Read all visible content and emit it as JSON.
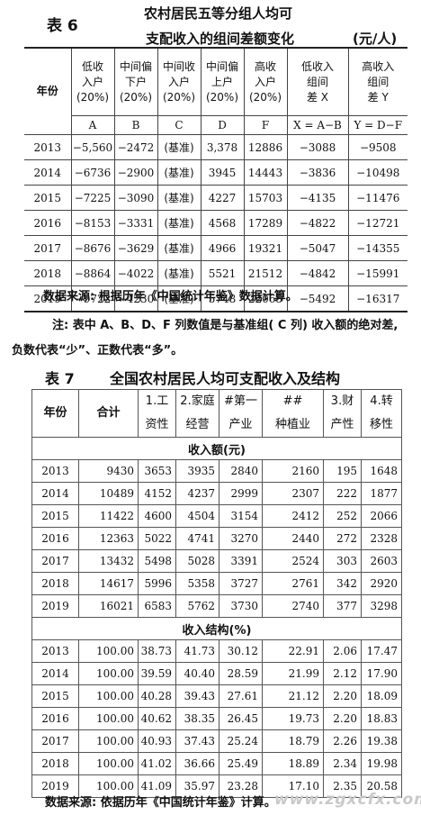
{
  "table6": {
    "label": "表 6",
    "title_line1": "农村居民五等分组人均可",
    "title_line2": "支配收入的组间差额变化",
    "unit": "(元/人)",
    "year_header": "年份",
    "columns": [
      [
        "低收",
        "入户",
        "(20%)"
      ],
      [
        "中间偏",
        "下户",
        "(20%)"
      ],
      [
        "中间收",
        "入户",
        "(20%)"
      ],
      [
        "中间偏",
        "上户",
        "(20%)"
      ],
      [
        "高收",
        "入户",
        "(20%)"
      ],
      [
        "低收入",
        "组间",
        "差 X"
      ],
      [
        "高收入",
        "组间",
        "差 Y"
      ]
    ],
    "letters": [
      "A",
      "B",
      "C",
      "D",
      "F",
      "X = A−B",
      "Y = D−F"
    ],
    "rows": [
      [
        "2013",
        "−5,560",
        "−2472",
        "(基准)",
        "3,378",
        "12886",
        "−3088",
        "−9508"
      ],
      [
        "2014",
        "−6736",
        "−2900",
        "(基准)",
        "3945",
        "14443",
        "−3836",
        "−10498"
      ],
      [
        "2015",
        "−7225",
        "−3090",
        "(基准)",
        "4227",
        "15703",
        "−4135",
        "−11476"
      ],
      [
        "2016",
        "−8153",
        "−3331",
        "(基准)",
        "4568",
        "17289",
        "−4822",
        "−12721"
      ],
      [
        "2017",
        "−8676",
        "−3629",
        "(基准)",
        "4966",
        "19321",
        "−5047",
        "−14355"
      ],
      [
        "2018",
        "−8864",
        "−4022",
        "(基准)",
        "5521",
        "21512",
        "−4842",
        "−15991"
      ],
      [
        "2019",
        "−9722",
        "−4230",
        "(基准)",
        "5748",
        "22065",
        "−5492",
        "−16317"
      ]
    ],
    "source": "数据来源: 根据历年《中国统计年鉴》数据计算。",
    "note_line1": "注: 表中 A、B、D、F 列数值是与基准组( C 列) 收入额的绝对差,",
    "note_line2": "负数代表“少”、正数代表“多”。"
  },
  "table7": {
    "label": "表 7",
    "title": "全国农村居民人均可支配收入及结构",
    "headers": [
      [
        "年份"
      ],
      [
        "合计"
      ],
      [
        "1.工",
        "资性"
      ],
      [
        "2.家庭",
        "经营"
      ],
      [
        "#第一",
        "产业"
      ],
      [
        "##",
        "种植业"
      ],
      [
        "3.财",
        "产性"
      ],
      [
        "4.转",
        "移性"
      ]
    ],
    "section1": "收入额(元)",
    "rows1": [
      [
        "2013",
        "9430",
        "3653",
        "3935",
        "2840",
        "2160",
        "195",
        "1648"
      ],
      [
        "2014",
        "10489",
        "4152",
        "4237",
        "2999",
        "2307",
        "222",
        "1877"
      ],
      [
        "2015",
        "11422",
        "4600",
        "4504",
        "3154",
        "2412",
        "252",
        "2066"
      ],
      [
        "2016",
        "12363",
        "5022",
        "4741",
        "3270",
        "2440",
        "272",
        "2328"
      ],
      [
        "2017",
        "13432",
        "5498",
        "5028",
        "3391",
        "2524",
        "303",
        "2603"
      ],
      [
        "2018",
        "14617",
        "5996",
        "5358",
        "3727",
        "2761",
        "342",
        "2920"
      ],
      [
        "2019",
        "16021",
        "6583",
        "5762",
        "3730",
        "2740",
        "377",
        "3298"
      ]
    ],
    "section2": "收入结构(%)",
    "rows2": [
      [
        "2013",
        "100.00",
        "38.73",
        "41.73",
        "30.12",
        "22.91",
        "2.06",
        "17.47"
      ],
      [
        "2014",
        "100.00",
        "39.59",
        "40.40",
        "28.59",
        "21.99",
        "2.12",
        "17.90"
      ],
      [
        "2015",
        "100.00",
        "40.28",
        "39.43",
        "27.61",
        "21.12",
        "2.20",
        "18.09"
      ],
      [
        "2016",
        "100.00",
        "40.62",
        "38.35",
        "26.45",
        "19.73",
        "2.20",
        "18.83"
      ],
      [
        "2017",
        "100.00",
        "40.93",
        "37.43",
        "25.24",
        "18.79",
        "2.26",
        "19.38"
      ],
      [
        "2018",
        "100.00",
        "41.02",
        "36.66",
        "25.49",
        "18.89",
        "2.34",
        "19.98"
      ],
      [
        "2019",
        "100.00",
        "41.09",
        "35.97",
        "23.28",
        "17.10",
        "2.35",
        "20.58"
      ]
    ],
    "source": "数据来源: 依据历年《中国统计年鉴》计算。"
  },
  "watermark": "www.zgxcfx.com"
}
